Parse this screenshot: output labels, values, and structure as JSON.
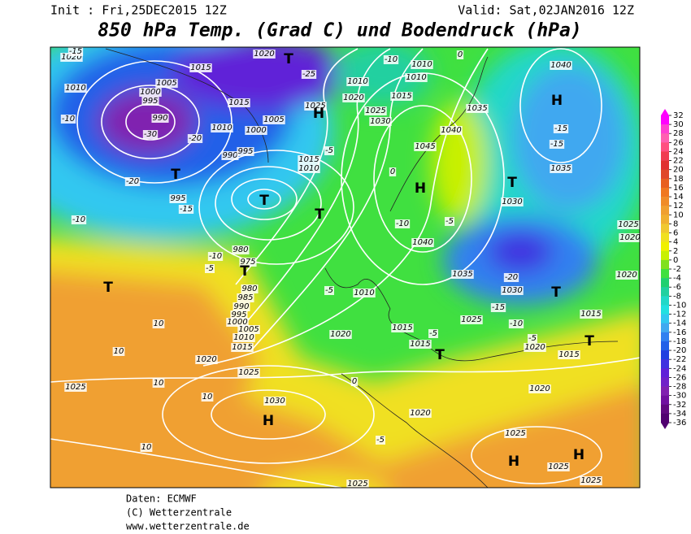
{
  "header": {
    "init": "Init : Fri,25DEC2015 12Z",
    "valid": "Valid: Sat,02JAN2016 12Z",
    "title": "850 hPa Temp. (Grad C) und Bodendruck (hPa)"
  },
  "footer": {
    "data": "Daten: ECMWF",
    "copyright": "(C) Wetterzentrale",
    "url": "www.wetterzentrale.de"
  },
  "colorbar": {
    "ticks": [
      32,
      30,
      28,
      26,
      24,
      22,
      20,
      18,
      16,
      14,
      12,
      10,
      8,
      6,
      4,
      2,
      0,
      -2,
      -4,
      -6,
      -8,
      -10,
      -12,
      -14,
      -16,
      -18,
      -20,
      -22,
      -24,
      -26,
      -28,
      -30,
      -32,
      -34,
      -36
    ],
    "colors": [
      "#ff00ff",
      "#ff40d0",
      "#ff60b0",
      "#ff5080",
      "#f03c50",
      "#e03030",
      "#e04828",
      "#e86020",
      "#f07820",
      "#f08c28",
      "#f0a030",
      "#f0b030",
      "#f0c830",
      "#f0e020",
      "#f0f000",
      "#c8f000",
      "#80e020",
      "#40e040",
      "#20d070",
      "#20d0a0",
      "#20d8c8",
      "#20e0e0",
      "#30c8f0",
      "#40a8f0",
      "#3080f0",
      "#2060e8",
      "#2040e0",
      "#4030e0",
      "#6020d8",
      "#7020c8",
      "#8020b0",
      "#7010a0",
      "#600880",
      "#500070"
    ]
  },
  "map_labels": [
    "1020",
    "-15",
    "1015",
    "1020",
    "1010",
    "1005",
    "1000",
    "995",
    "990",
    "-30",
    "-10",
    "1015",
    "1010",
    "1000",
    "1005",
    "-25",
    "1025",
    "-20",
    "990",
    "995",
    "1015",
    "1010",
    "-5",
    "-20",
    "995",
    "-15",
    "-10",
    "980",
    "-10",
    "975",
    "-5",
    "980",
    "985",
    "990",
    "995",
    "1000",
    "1005",
    "1010",
    "1015",
    "1020",
    "1025",
    "1025",
    "10",
    "10",
    "10",
    "10",
    "10",
    "1030",
    "-5",
    "1010",
    "1020",
    "1015",
    "1015",
    "-5",
    "0",
    "1020",
    "-5",
    "1025",
    "1015",
    "1020",
    "1010",
    "-10",
    "1010",
    "1010",
    "1025",
    "1030",
    "1035",
    "1040",
    "1045",
    "0",
    "1040",
    "-10",
    "-5",
    "1035",
    "1030",
    "-20",
    "-15",
    "1025",
    "-10",
    "-5",
    "1020",
    "1015",
    "1015",
    "1020",
    "1025",
    "1020",
    "1035",
    "1030",
    "-15",
    "-15",
    "1040",
    "1020",
    "1025",
    "1025",
    "1025",
    "0"
  ],
  "centers": [
    "T",
    "H",
    "T",
    "T",
    "T",
    "T",
    "T",
    "H",
    "T",
    "H",
    "T",
    "T",
    "T",
    "H",
    "H",
    "H"
  ]
}
